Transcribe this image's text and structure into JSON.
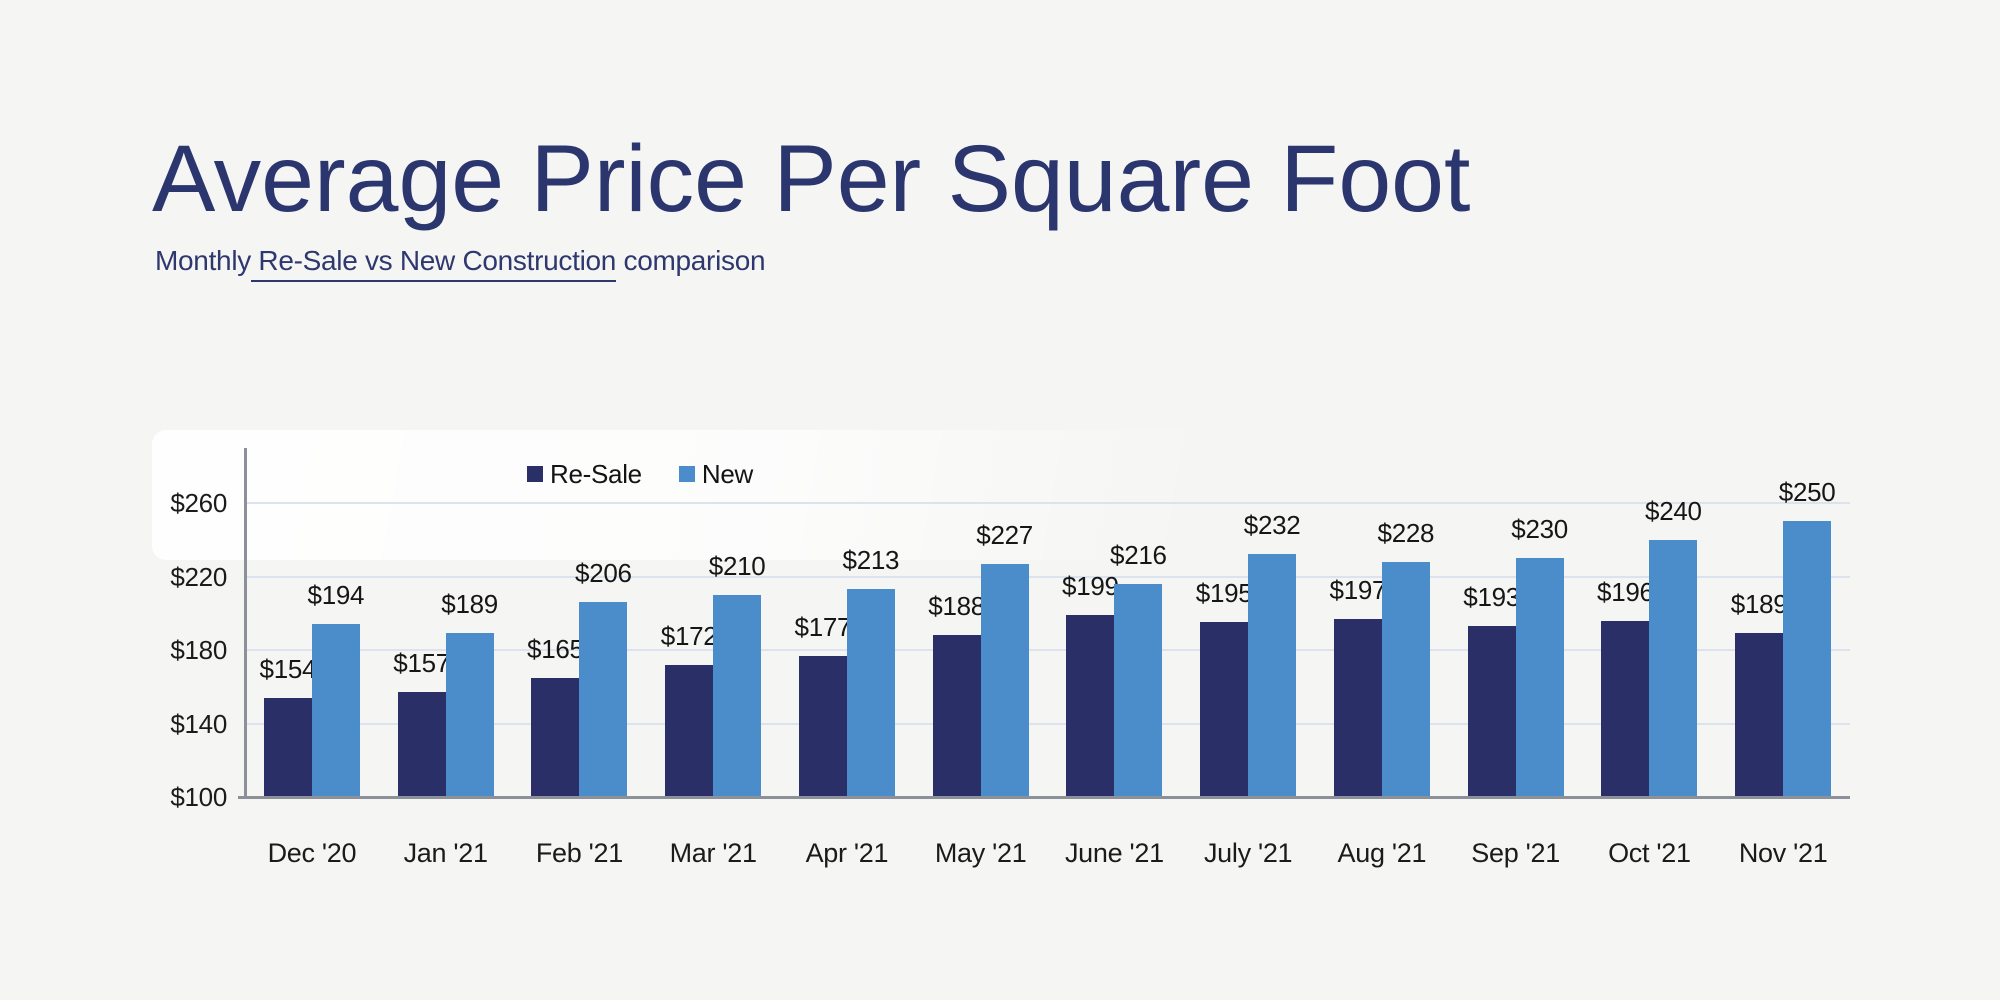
{
  "page": {
    "background_color": "#f5f5f3"
  },
  "header": {
    "title": "Average Price Per Square Foot",
    "subtitle": {
      "pre": "Monthly",
      "underlined": " Re-Sale vs New Construction",
      "post": " comparison"
    }
  },
  "colors": {
    "title_text": "#2b356e",
    "chart_text": "#1b1b1b",
    "grid_line": "#dde3ee",
    "axis_line": "#8b9099",
    "resale_bar": "#2a3067",
    "new_bar": "#4b8cca"
  },
  "chart_data": {
    "type": "bar",
    "title": "Average Price Per Square Foot",
    "subtitle": "Monthly Re-Sale vs New Construction comparison",
    "categories": [
      "Dec '20",
      "Jan '21",
      "Feb '21",
      "Mar '21",
      "Apr '21",
      "May '21",
      "June '21",
      "July '21",
      "Aug '21",
      "Sep '21",
      "Oct '21",
      "Nov '21"
    ],
    "series": [
      {
        "name": "Re-Sale",
        "color": "#2a3067",
        "values": [
          154,
          157,
          165,
          172,
          177,
          188,
          199,
          195,
          197,
          193,
          196,
          189
        ]
      },
      {
        "name": "New",
        "color": "#4b8cca",
        "values": [
          194,
          189,
          206,
          210,
          213,
          227,
          216,
          232,
          228,
          230,
          240,
          250
        ]
      }
    ],
    "value_prefix": "$",
    "value_labels": true,
    "xlabel": "",
    "ylabel": "",
    "y_ticks": [
      100,
      140,
      180,
      220,
      260
    ],
    "y_tick_labels": [
      "$100",
      "$140",
      "$180",
      "$220",
      "$260"
    ],
    "ylim": [
      100,
      290
    ],
    "grid": true,
    "legend_position": "top"
  }
}
